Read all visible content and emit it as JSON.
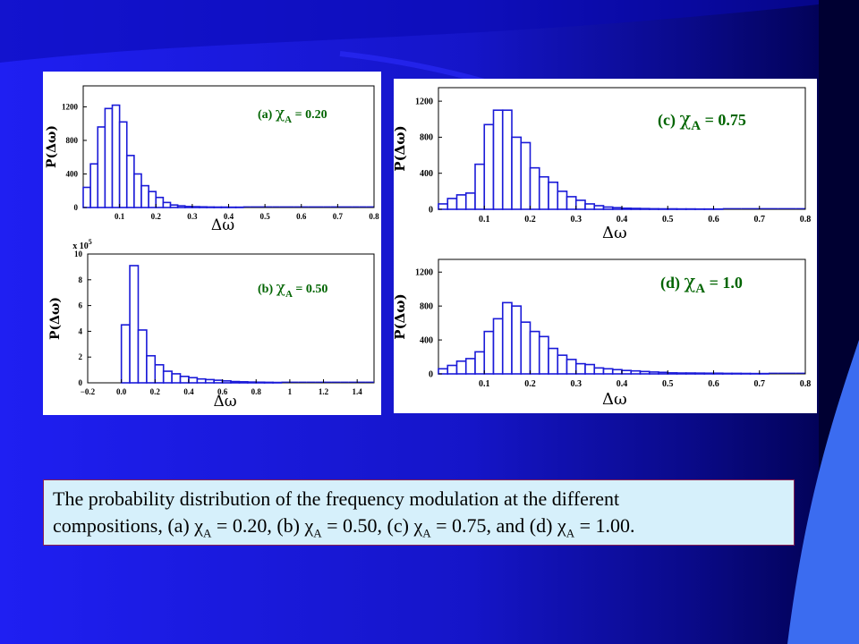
{
  "colors": {
    "background_left": "#1d1df0",
    "background_right": "#00004a",
    "bar_stroke": "#1a1ad8",
    "label_green": "#006400",
    "caption_bg": "#d6f0fb",
    "caption_border": "#8b2252"
  },
  "chart_data": [
    {
      "id": "a",
      "type": "bar",
      "annotation": {
        "tag": "(a)",
        "symbol": "χ",
        "sub": "A",
        "rest": " = 0.20"
      },
      "xlabel": "Δω",
      "ylabel": "P(Δω)",
      "xlim": [
        0,
        0.8
      ],
      "ylim": [
        0,
        1450
      ],
      "xticks": [
        "0.1",
        "0.2",
        "0.3",
        "0.4",
        "0.5",
        "0.6",
        "0.7",
        "0.8"
      ],
      "yticks": [
        "0",
        "400",
        "800",
        "1200"
      ],
      "bin_width": 0.02,
      "bin_start": 0.0,
      "values": [
        240,
        520,
        960,
        1180,
        1220,
        1020,
        620,
        400,
        260,
        190,
        120,
        60,
        30,
        20,
        12,
        10,
        8,
        6,
        5,
        5,
        4,
        4,
        3,
        3,
        3,
        2,
        2,
        2,
        2,
        2,
        2,
        2,
        2,
        1,
        1,
        1,
        1,
        1,
        1,
        1
      ]
    },
    {
      "id": "b",
      "type": "bar",
      "annotation": {
        "tag": "(b)",
        "symbol": "χ",
        "sub": "A",
        "rest": " = 0.50"
      },
      "xlabel": "Δω",
      "ylabel": "P(Δω)",
      "scale_label": {
        "prefix": "x 10",
        "exp": "5"
      },
      "xlim": [
        -0.2,
        1.5
      ],
      "ylim": [
        0,
        10
      ],
      "xticks": [
        "−0.2",
        "0.0",
        "0.2",
        "0.4",
        "0.6",
        "0.8",
        "1",
        "1.2",
        "1.4"
      ],
      "yticks": [
        "0",
        "2",
        "4",
        "6",
        "8",
        "10"
      ],
      "bin_width": 0.05,
      "bin_start": 0.0,
      "values": [
        4.5,
        9.1,
        4.1,
        2.1,
        1.4,
        0.9,
        0.7,
        0.5,
        0.4,
        0.3,
        0.25,
        0.2,
        0.15,
        0.1,
        0.08,
        0.06,
        0.05,
        0.04,
        0.03,
        0.02,
        0.02,
        0.01,
        0.01,
        0.01,
        0.01,
        0.01,
        0.01,
        0.01,
        0.01,
        0.01
      ]
    },
    {
      "id": "c",
      "type": "bar",
      "annotation": {
        "tag": "(c)",
        "symbol": "χ",
        "sub": "A",
        "rest": " = 0.75"
      },
      "xlabel": "Δω",
      "ylabel": "P(Δω)",
      "xlim": [
        0,
        0.8
      ],
      "ylim": [
        0,
        1350
      ],
      "xticks": [
        "0.1",
        "0.2",
        "0.3",
        "0.4",
        "0.5",
        "0.6",
        "0.7",
        "0.8"
      ],
      "yticks": [
        "0",
        "400",
        "800",
        "1200"
      ],
      "bin_width": 0.02,
      "bin_start": 0.0,
      "values": [
        60,
        120,
        160,
        180,
        500,
        940,
        1100,
        1100,
        800,
        740,
        460,
        360,
        300,
        200,
        140,
        100,
        60,
        40,
        25,
        18,
        12,
        10,
        8,
        6,
        5,
        5,
        4,
        4,
        3,
        3,
        3,
        2,
        2,
        2,
        2,
        2,
        1,
        1,
        1,
        1
      ]
    },
    {
      "id": "d",
      "type": "bar",
      "annotation": {
        "tag": "(d)",
        "symbol": "χ",
        "sub": "A",
        "rest": " = 1.0"
      },
      "xlabel": "Δω",
      "ylabel": "P(Δω)",
      "xlim": [
        0,
        0.8
      ],
      "ylim": [
        0,
        1350
      ],
      "xticks": [
        "0.1",
        "0.2",
        "0.3",
        "0.4",
        "0.5",
        "0.6",
        "0.7",
        "0.8"
      ],
      "yticks": [
        "0",
        "400",
        "800",
        "1200"
      ],
      "bin_width": 0.02,
      "bin_start": 0.0,
      "values": [
        60,
        100,
        150,
        180,
        260,
        500,
        650,
        840,
        800,
        610,
        500,
        440,
        300,
        220,
        170,
        120,
        110,
        70,
        60,
        50,
        40,
        35,
        28,
        22,
        18,
        12,
        10,
        10,
        9,
        8,
        8,
        6,
        6,
        5,
        4,
        4,
        3,
        3,
        3,
        2
      ]
    }
  ],
  "caption": {
    "line1": "The probability distribution of the frequency modulation at the different",
    "line2_parts": [
      {
        "text": "compositions, (a) "
      },
      {
        "text": "χ",
        "sub": "A"
      },
      {
        "text": " = 0.20, (b) "
      },
      {
        "text": "χ",
        "sub": "A"
      },
      {
        "text": " = 0.50, (c) "
      },
      {
        "text": "χ",
        "sub": "A"
      },
      {
        "text": " = 0.75, and (d) "
      },
      {
        "text": "χ",
        "sub": "A"
      },
      {
        "text": " = 1.00."
      }
    ]
  }
}
